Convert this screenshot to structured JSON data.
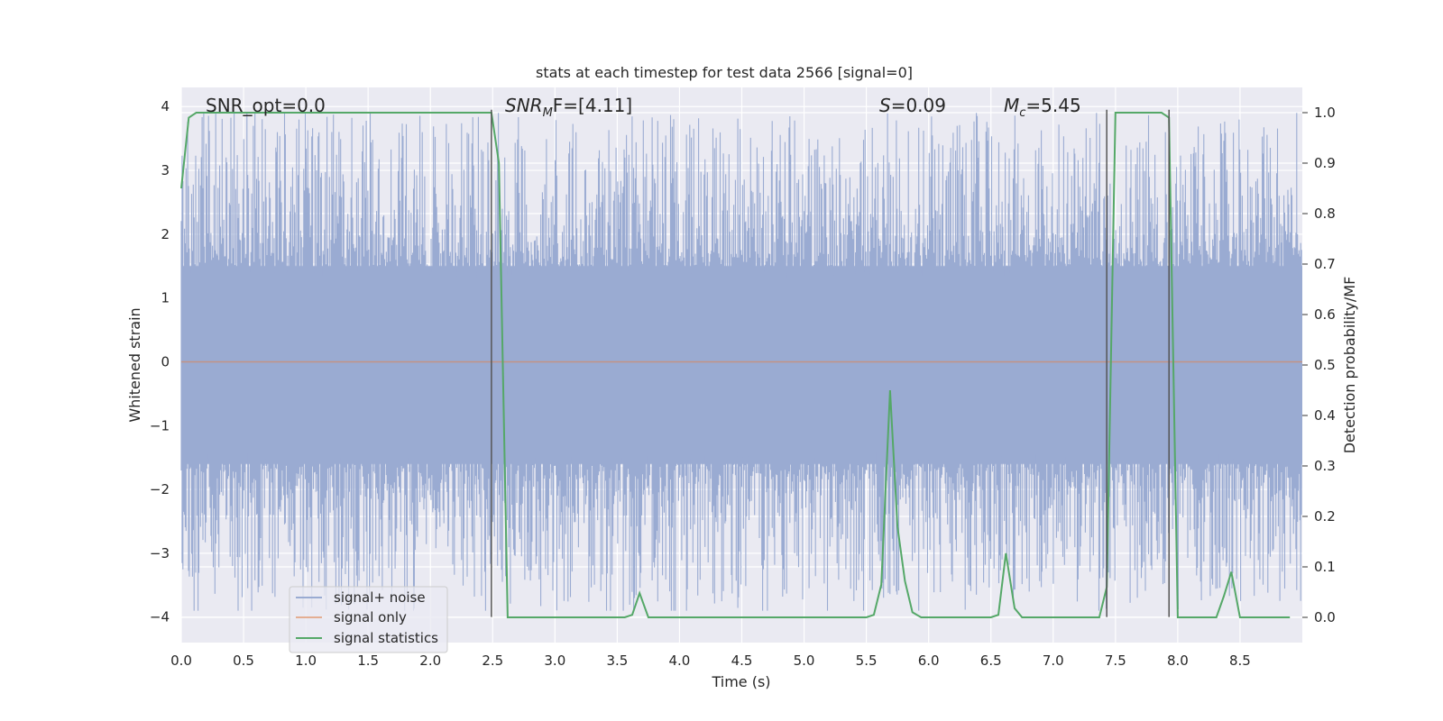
{
  "chart_data": {
    "type": "line",
    "title": "stats at each timestep for test data 2566 [signal=0]",
    "xlabel": "Time (s)",
    "ylabel": "Whitened strain",
    "y2label": "Detection probability/MF",
    "xlim": [
      0.0,
      9.0
    ],
    "ylim": [
      -4.4,
      4.3
    ],
    "y2lim": [
      -0.05,
      1.05
    ],
    "xticks": [
      "0.0",
      "0.5",
      "1.0",
      "1.5",
      "2.0",
      "2.5",
      "3.0",
      "3.5",
      "4.0",
      "4.5",
      "5.0",
      "5.5",
      "6.0",
      "6.5",
      "7.0",
      "7.5",
      "8.0",
      "8.5"
    ],
    "yticks": [
      "4",
      "3",
      "2",
      "1",
      "0",
      "−1",
      "−2",
      "−3",
      "−4"
    ],
    "y2ticks": [
      "1.0",
      "0.9",
      "0.8",
      "0.7",
      "0.6",
      "0.5",
      "0.4",
      "0.3",
      "0.2",
      "0.1",
      "0.0"
    ],
    "grid": true,
    "legend_position": "lower-left",
    "colors": {
      "noise": "#9aabd2",
      "signal_only": "#dd8452",
      "statistics": "#55a868",
      "vline": "#555555",
      "plot_bg": "#eaeaf2",
      "grid": "#ffffff"
    },
    "annotations": [
      {
        "id": "snr_opt",
        "text": "SNR_opt=0.0"
      },
      {
        "id": "snr_mf",
        "text": "SNR",
        "sub": "M",
        "tail": "F=[4.11]"
      },
      {
        "id": "s_stat",
        "text": "S",
        "tail": "=0.09"
      },
      {
        "id": "mc",
        "text": "M",
        "sub": "c",
        "tail": "=5.45"
      }
    ],
    "noise": {
      "name": "signal+ noise",
      "t_range": [
        0.0,
        9.0
      ],
      "typical_band": [
        -1.6,
        1.5
      ],
      "envelope": [
        -3.9,
        3.9
      ],
      "description_hint": "dense whitened noise fluctuating mostly between -1.6 and 1.5 with spikes to about +/-3.9"
    },
    "signal_only": {
      "name": "signal only",
      "value": 0.0
    },
    "statistics": {
      "name": "signal statistics",
      "axis": "right",
      "x": [
        0.0,
        0.06,
        0.12,
        0.19,
        0.25,
        0.5,
        1.0,
        1.5,
        2.0,
        2.49,
        2.55,
        2.62,
        2.68,
        3.0,
        3.5,
        3.56,
        3.62,
        3.68,
        3.75,
        4.0,
        4.5,
        5.0,
        5.5,
        5.56,
        5.62,
        5.69,
        5.75,
        5.81,
        5.87,
        5.94,
        6.0,
        6.5,
        6.56,
        6.62,
        6.69,
        6.75,
        7.0,
        7.37,
        7.43,
        7.5,
        7.56,
        7.62,
        7.7,
        7.87,
        7.93,
        8.0,
        8.06,
        8.12,
        8.25,
        8.31,
        8.37,
        8.43,
        8.5,
        8.9
      ],
      "y": [
        0.85,
        0.99,
        1.0,
        1.0,
        1.0,
        1.0,
        1.0,
        1.0,
        1.0,
        1.0,
        0.9,
        0.0,
        0.0,
        0.0,
        0.0,
        0.0,
        0.005,
        0.048,
        0.0,
        0.0,
        0.0,
        0.0,
        0.0,
        0.005,
        0.065,
        0.45,
        0.18,
        0.072,
        0.01,
        0.0,
        0.0,
        0.0,
        0.005,
        0.127,
        0.018,
        0.0,
        0.0,
        0.0,
        0.06,
        1.0,
        1.0,
        1.0,
        1.0,
        1.0,
        0.99,
        0.0,
        0.0,
        0.0,
        0.0,
        0.0,
        0.042,
        0.09,
        0.0,
        0.0
      ]
    },
    "vlines": [
      2.49,
      7.43,
      7.93
    ],
    "vline_range": [
      -4.0,
      3.95
    ]
  },
  "legend": [
    {
      "label": "signal+ noise"
    },
    {
      "label": "signal only"
    },
    {
      "label": "signal statistics"
    }
  ]
}
